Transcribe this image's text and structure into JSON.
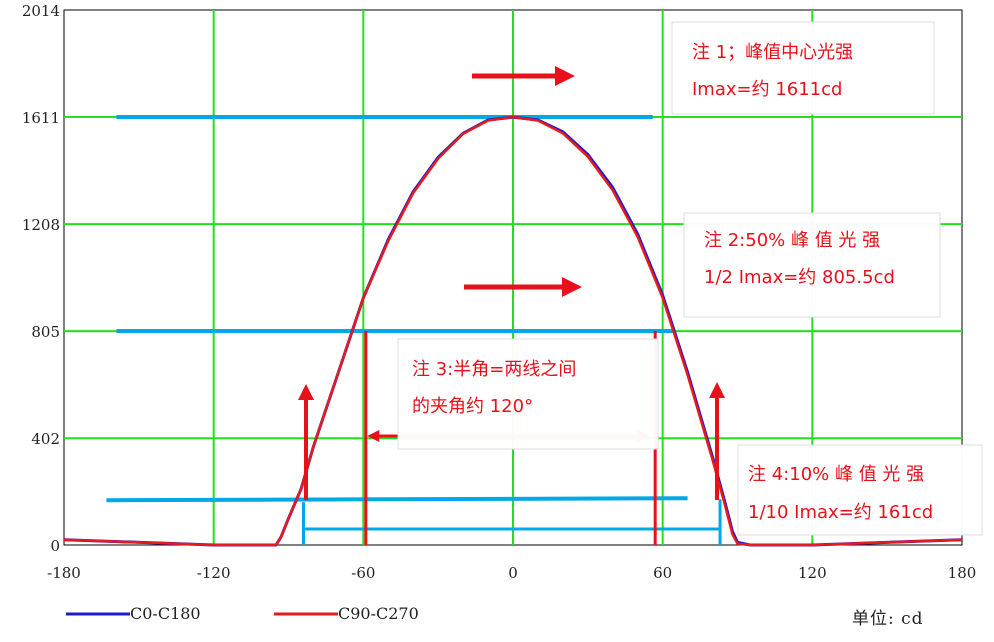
{
  "chart_data": {
    "type": "line",
    "xlim": [
      -180,
      180
    ],
    "ylim": [
      0,
      2014
    ],
    "xticks": [
      "-180",
      "-120",
      "-60",
      "0",
      "60",
      "120",
      "180"
    ],
    "yticks": [
      "0",
      "402",
      "805",
      "1208",
      "1611",
      "2014"
    ],
    "grid": true,
    "legend_position": "bottom-left",
    "series": [
      {
        "name": "C0-C180",
        "color": "#1a1ad6",
        "x": [
          -180,
          -120,
          -95,
          -93,
          -90,
          -85,
          -80,
          -70,
          -60,
          -50,
          -40,
          -30,
          -20,
          -10,
          0,
          10,
          20,
          30,
          40,
          50,
          60,
          70,
          80,
          85,
          88,
          90,
          95,
          120,
          180
        ],
        "y": [
          20,
          0,
          0,
          30,
          100,
          210,
          370,
          650,
          930,
          1150,
          1330,
          1460,
          1550,
          1600,
          1611,
          1600,
          1555,
          1470,
          1345,
          1170,
          940,
          650,
          330,
          160,
          50,
          10,
          0,
          0,
          20
        ]
      },
      {
        "name": "C90-C270",
        "color": "#e81a1a",
        "x": [
          -180,
          -120,
          -95,
          -93,
          -90,
          -85,
          -80,
          -70,
          -60,
          -50,
          -40,
          -30,
          -20,
          -10,
          0,
          10,
          20,
          30,
          40,
          50,
          60,
          70,
          80,
          85,
          88,
          90,
          95,
          120,
          180
        ],
        "y": [
          20,
          0,
          0,
          30,
          100,
          210,
          370,
          650,
          930,
          1145,
          1325,
          1455,
          1548,
          1598,
          1611,
          1598,
          1550,
          1462,
          1335,
          1160,
          930,
          640,
          320,
          150,
          40,
          5,
          0,
          0,
          20
        ]
      }
    ],
    "reference_lines": [
      {
        "y": 1611,
        "color": "#00a8e8"
      },
      {
        "y": 805.5,
        "color": "#00a8e8"
      },
      {
        "y": 161,
        "color": "#00a8e8"
      }
    ],
    "annotations": [
      {
        "lines": [
          "注 1；峰值中心光强",
          "Imax=约 1611cd"
        ]
      },
      {
        "lines": [
          "注  2:50% 峰 值 光 强",
          "1/2  Imax=约 805.5cd"
        ]
      },
      {
        "lines": [
          "注 3:半角=两线之间",
          "的夹角约 120°"
        ]
      },
      {
        "lines": [
          "注  4:10% 峰 值 光 强",
          "1/10  Imax=约 161cd"
        ]
      }
    ],
    "unit_label": "单位:  cd"
  }
}
